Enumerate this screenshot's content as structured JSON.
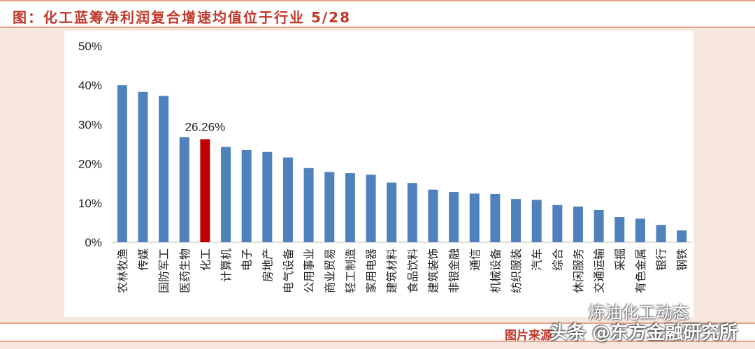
{
  "title": "图：化工蓝筹净利润复合增速均值位于行业 5/28",
  "source": "图片来源：",
  "watermark_main": "头条 @东方金融研究所",
  "watermark_sub": "炼油化工动态",
  "colors": {
    "bar": "#4f81bd",
    "highlight": "#c00000",
    "title": "#c0392b",
    "border": "#e8a48a"
  },
  "chart_data": {
    "type": "bar",
    "title": "",
    "xlabel": "",
    "ylabel": "",
    "ylim": [
      0,
      50
    ],
    "yticks": [
      "0%",
      "10%",
      "20%",
      "30%",
      "40%",
      "50%"
    ],
    "grid": false,
    "categories": [
      "农林牧渔",
      "传媒",
      "国防军工",
      "医药生物",
      "化工",
      "计算机",
      "电子",
      "房地产",
      "电气设备",
      "公用事业",
      "商业贸易",
      "轻工制造",
      "家用电器",
      "建筑材料",
      "食品饮料",
      "建筑装饰",
      "非银金融",
      "通信",
      "机械设备",
      "纺织服装",
      "汽车",
      "综合",
      "休闲服务",
      "交通运输",
      "采掘",
      "有色金属",
      "银行",
      "钢铁"
    ],
    "values": [
      40.0,
      38.3,
      37.3,
      26.8,
      26.26,
      24.3,
      23.5,
      23.0,
      21.6,
      18.9,
      17.9,
      17.6,
      17.2,
      15.2,
      15.1,
      13.4,
      12.8,
      12.4,
      12.3,
      11.0,
      10.8,
      9.5,
      9.1,
      8.2,
      6.4,
      6.0,
      4.4,
      3.0
    ],
    "highlight_index": 4,
    "highlight_label": "26.26%"
  }
}
